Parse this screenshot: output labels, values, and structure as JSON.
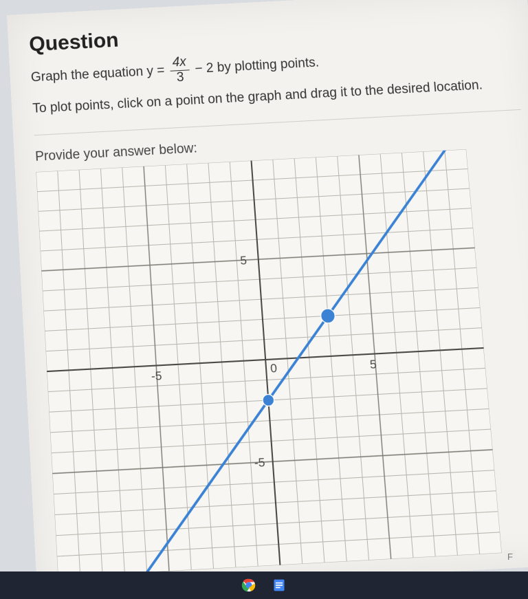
{
  "header": {
    "title": "Question"
  },
  "prompt": {
    "prefix": "Graph the equation y =",
    "fraction_num": "4x",
    "fraction_den": "3",
    "suffix": "− 2 by plotting points."
  },
  "instruction": "To plot points, click on a point on the graph and drag it to the desired location.",
  "answer_label": "Provide your answer below:",
  "chart": {
    "type": "line",
    "xlim": [
      -10,
      10
    ],
    "ylim": [
      -10,
      10
    ],
    "xtick_major": [
      -5,
      5
    ],
    "ytick_major": [
      -5,
      5
    ],
    "origin_label": "0",
    "background_color": "#f7f6f2",
    "grid_color": "#b7b7af",
    "grid_major_color": "#7e7e77",
    "axis_color": "#4a4a46",
    "axis_width": 2,
    "grid_width": 1,
    "tick_fontsize": 17,
    "line": {
      "color": "#3b82d4",
      "width": 3.5,
      "points_x": [
        -7,
        9
      ],
      "points_y": [
        -11.333,
        10
      ]
    },
    "plotted_points": [
      {
        "x": 0,
        "y": -2,
        "color": "#3b82d4",
        "radius": 8
      },
      {
        "x": 3,
        "y": 2,
        "color": "#3b82d4",
        "radius": 10
      }
    ]
  },
  "corner_badge": "F",
  "taskbar_items": [
    "chrome",
    "docs"
  ]
}
